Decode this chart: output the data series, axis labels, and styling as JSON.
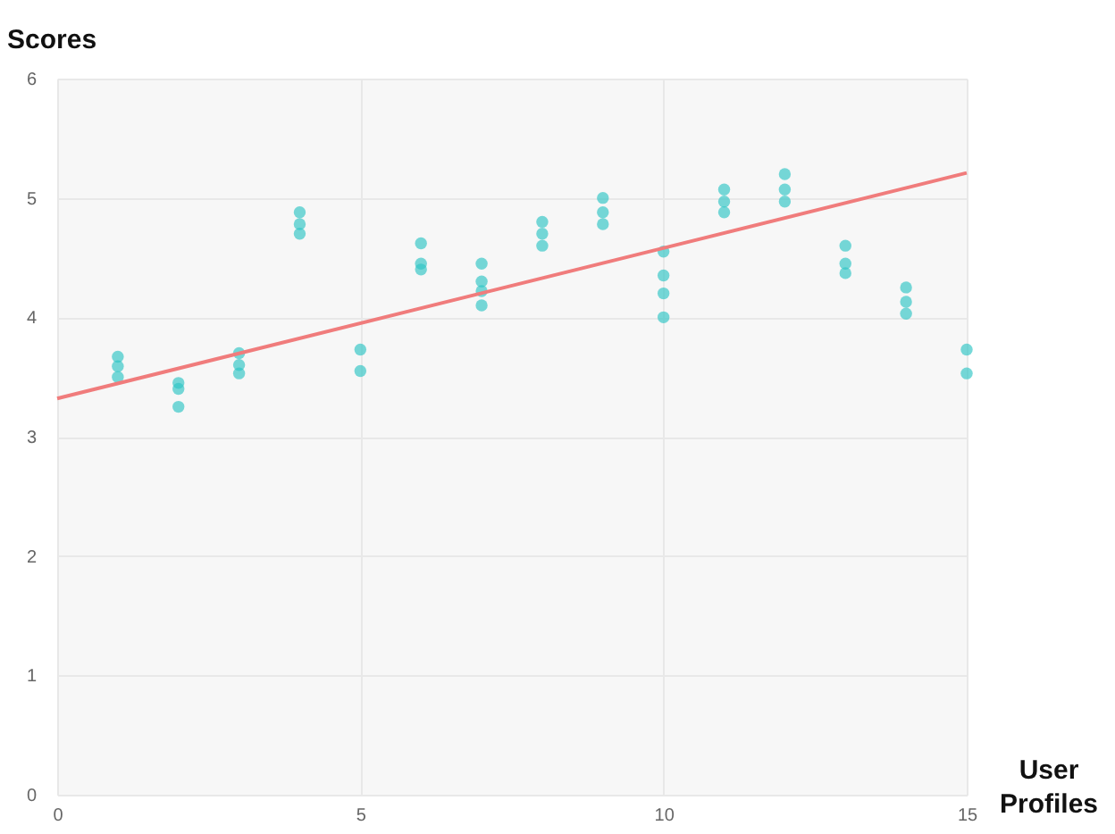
{
  "chart_data": {
    "type": "scatter",
    "xlabel": "User Profiles",
    "ylabel": "Scores",
    "xlim": [
      0,
      15
    ],
    "xticks": [
      0,
      5,
      10,
      15
    ],
    "ylim": [
      0,
      6
    ],
    "yticks": [
      0,
      1,
      2,
      3,
      4,
      5,
      6
    ],
    "grid": true,
    "series": [
      {
        "marker": "circle",
        "color": "#2ec4c4",
        "x": [
          1,
          1,
          1,
          2,
          2,
          2,
          3,
          3,
          3,
          4,
          4,
          4,
          5,
          5,
          6,
          6,
          6,
          7,
          7,
          7,
          7,
          8,
          8,
          8,
          9,
          9,
          9,
          10,
          10,
          10,
          10,
          11,
          11,
          11,
          12,
          12,
          12,
          13,
          13,
          13,
          14,
          14,
          14,
          15,
          15
        ],
        "values": [
          3.67,
          3.59,
          3.5,
          3.45,
          3.4,
          3.25,
          3.7,
          3.6,
          3.53,
          4.88,
          4.78,
          4.7,
          3.73,
          3.55,
          4.62,
          4.45,
          4.4,
          4.45,
          4.3,
          4.22,
          4.1,
          4.8,
          4.7,
          4.6,
          5.0,
          4.88,
          4.78,
          4.55,
          4.35,
          4.2,
          4.0,
          5.07,
          4.97,
          4.88,
          5.2,
          5.07,
          4.97,
          4.6,
          4.45,
          4.37,
          4.25,
          4.13,
          4.03,
          3.73,
          3.53
        ]
      },
      {
        "type": "line",
        "color": "#f07c7c",
        "x": [
          0,
          15
        ],
        "values": [
          3.32,
          5.21
        ]
      }
    ]
  }
}
